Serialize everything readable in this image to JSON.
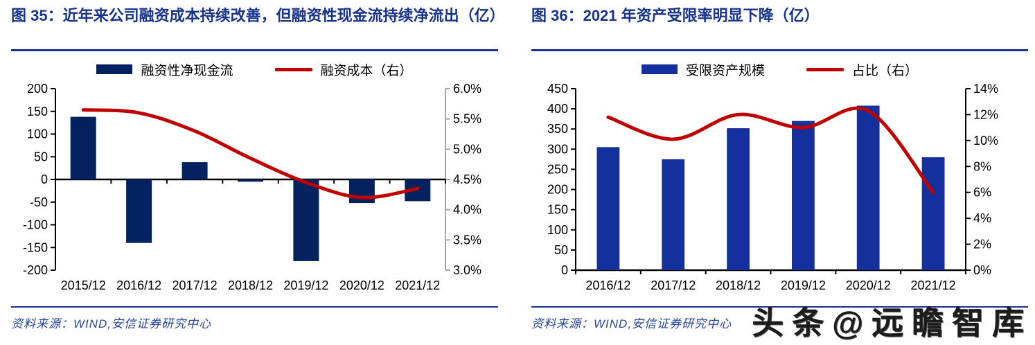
{
  "panels": [
    {
      "title": "图 35：近年来公司融资成本持续改善，但融资性现金流持续净流出（亿）",
      "legend": [
        {
          "label": "融资性净现金流",
          "type": "bar",
          "color": "#052260"
        },
        {
          "label": "融资成本（右）",
          "type": "line",
          "color": "#c00000"
        }
      ],
      "source": "资料来源：WIND,安信证券研究中心"
    },
    {
      "title": "图 36：2021 年资产受限率明显下降（亿）",
      "legend": [
        {
          "label": "受限资产规模",
          "type": "bar",
          "color": "#13309c"
        },
        {
          "label": "占比（右）",
          "type": "line",
          "color": "#c00000"
        }
      ],
      "source": "资料来源：WIND,安信证券研究中心"
    }
  ],
  "watermark": "头条@远瞻智库",
  "chart_data": [
    {
      "type": "bar",
      "title": "近年来公司融资成本持续改善，但融资性现金流持续净流出（亿）",
      "categories": [
        "2015/12",
        "2016/12",
        "2017/12",
        "2018/12",
        "2019/12",
        "2020/12",
        "2021/12"
      ],
      "series": [
        {
          "name": "融资性净现金流",
          "type": "bar",
          "axis": "left",
          "color": "#052260",
          "values": [
            138,
            -140,
            38,
            -5,
            -180,
            -52,
            -48
          ]
        },
        {
          "name": "融资成本（右）",
          "type": "line",
          "axis": "right",
          "color": "#c00000",
          "values": [
            5.65,
            5.6,
            5.3,
            4.85,
            4.45,
            4.2,
            4.35
          ]
        }
      ],
      "xlabel": "",
      "ylabel": "",
      "left_axis": {
        "min": -200,
        "max": 200,
        "step": 50,
        "color": "#000000",
        "labels": [
          "200",
          "150",
          "100",
          "50",
          "0",
          "-50",
          "-100",
          "-150",
          "-200"
        ]
      },
      "right_axis": {
        "min": 3.0,
        "max": 6.0,
        "step": 0.5,
        "color": "#a6a6a6",
        "labels": [
          "6.0%",
          "5.5%",
          "5.0%",
          "4.5%",
          "4.0%",
          "3.5%",
          "3.0%"
        ]
      },
      "x_axis_position": "zero",
      "grid": false,
      "legend_position": "top"
    },
    {
      "type": "bar",
      "title": "2021 年资产受限率明显下降（亿）",
      "categories": [
        "2016/12",
        "2017/12",
        "2018/12",
        "2019/12",
        "2020/12",
        "2021/12"
      ],
      "series": [
        {
          "name": "受限资产规模",
          "type": "bar",
          "axis": "left",
          "color": "#13309c",
          "values": [
            305,
            275,
            352,
            370,
            408,
            280
          ]
        },
        {
          "name": "占比（右）",
          "type": "line",
          "axis": "right",
          "color": "#c00000",
          "values": [
            11.8,
            10.1,
            12.0,
            11.0,
            12.3,
            6.0
          ]
        }
      ],
      "xlabel": "",
      "ylabel": "",
      "left_axis": {
        "min": 0,
        "max": 450,
        "step": 50,
        "color": "#000000",
        "labels": [
          "450",
          "400",
          "350",
          "300",
          "250",
          "200",
          "150",
          "100",
          "50",
          "0"
        ]
      },
      "right_axis": {
        "min": 0,
        "max": 14,
        "step": 2,
        "color": "#000000",
        "labels": [
          "14%",
          "12%",
          "10%",
          "8%",
          "6%",
          "4%",
          "2%",
          "0%"
        ]
      },
      "x_axis_position": "bottom",
      "grid": false,
      "legend_position": "top"
    }
  ]
}
